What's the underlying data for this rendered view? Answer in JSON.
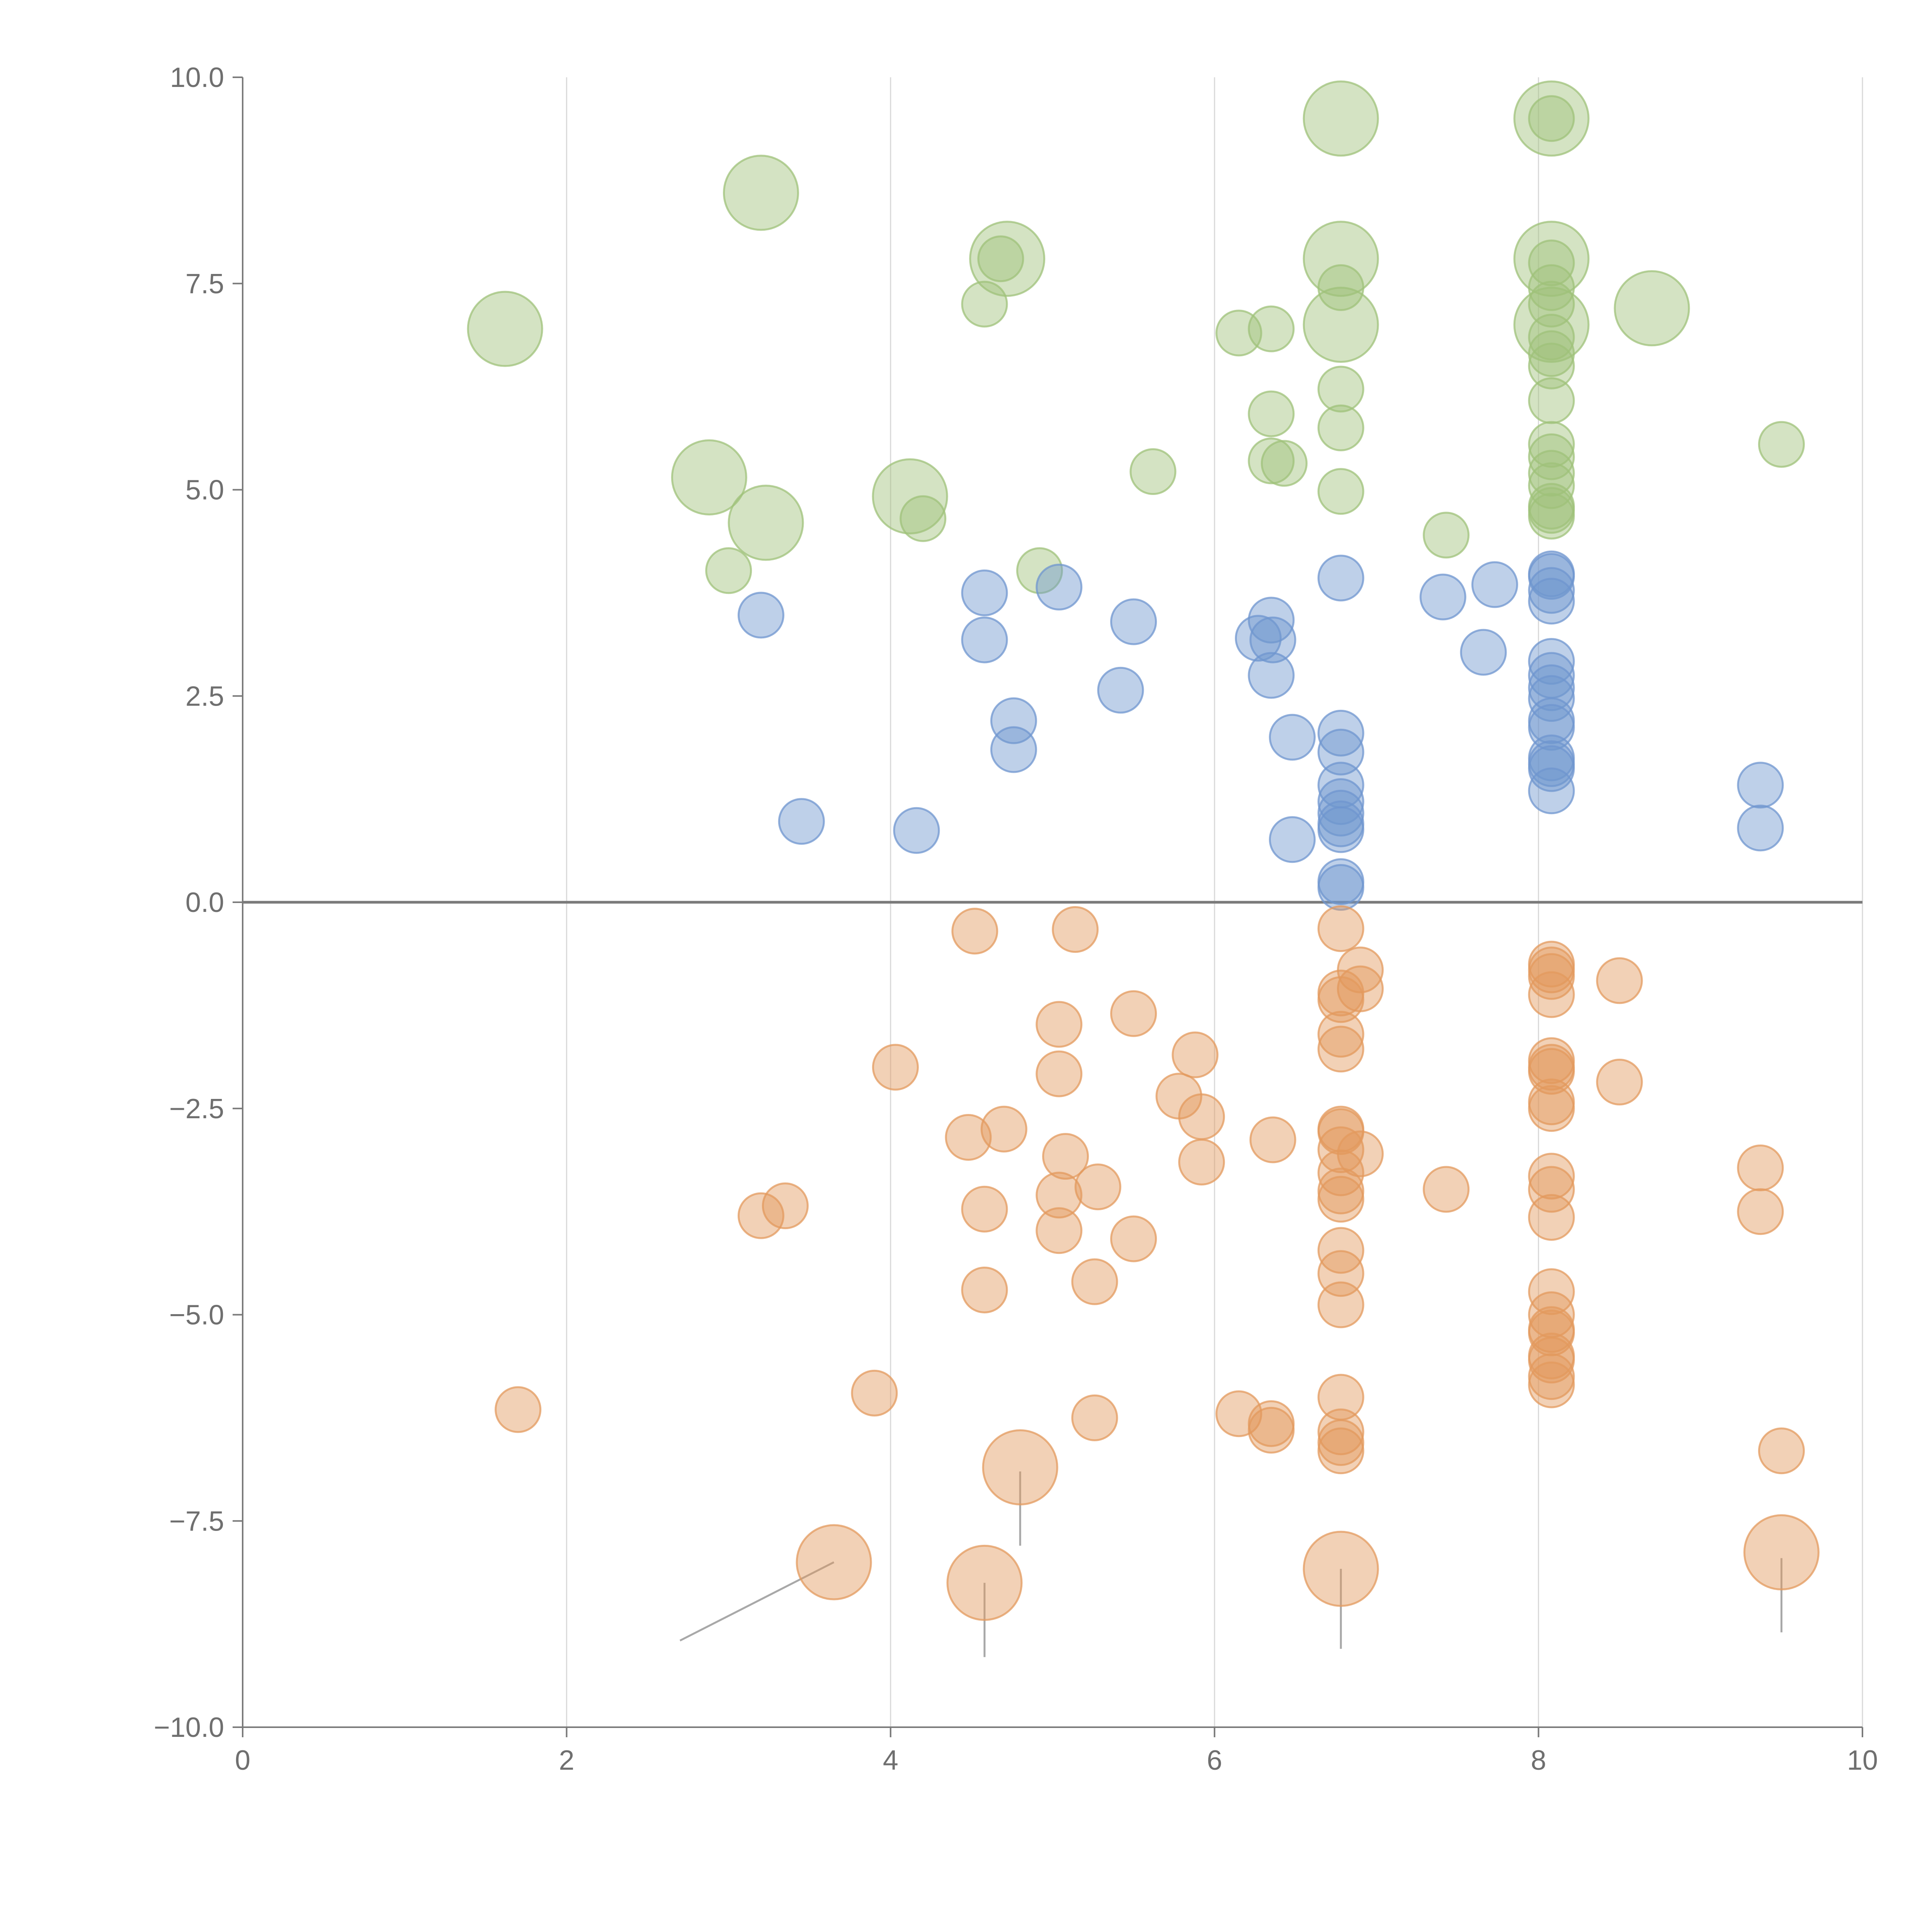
{
  "chart_data": {
    "type": "scatter",
    "title": "",
    "xlabel": "",
    "ylabel": "",
    "xlim": [
      0,
      10
    ],
    "ylim": [
      -10,
      10
    ],
    "x_ticks": [
      0,
      2,
      4,
      6,
      8,
      10
    ],
    "x_tick_labels": [
      "0",
      "2",
      "4",
      "6",
      "8",
      "10"
    ],
    "y_ticks": [
      10,
      7.5,
      5,
      2.5,
      0,
      -2.5,
      -5,
      -7.5,
      -10
    ],
    "y_tick_labels": [
      "10.0",
      "7.5",
      "5.0",
      "2.5",
      "0.0",
      "−2.5",
      "−5.0",
      "−7.5",
      "−10.0"
    ],
    "grid": "vertical",
    "reference_line_y": 0,
    "colors": {
      "green": "#9fc27a",
      "blue": "#6f96cf",
      "orange": "#e39a5e"
    },
    "series": [
      {
        "color": "#9fc27a",
        "points": [
          [
            6.78,
            9.5,
            "L"
          ],
          [
            8.08,
            9.5,
            "L"
          ],
          [
            8.08,
            9.5,
            "S"
          ],
          [
            3.2,
            8.6,
            "L"
          ],
          [
            4.72,
            7.8,
            "L"
          ],
          [
            4.68,
            7.8,
            "S"
          ],
          [
            6.78,
            7.8,
            "L"
          ],
          [
            8.08,
            7.8,
            "L"
          ],
          [
            8.08,
            7.75,
            "S"
          ],
          [
            6.78,
            7.45,
            "S"
          ],
          [
            8.08,
            7.45,
            "S"
          ],
          [
            4.58,
            7.25,
            "S"
          ],
          [
            8.08,
            7.25,
            "S"
          ],
          [
            8.7,
            7.2,
            "L"
          ],
          [
            1.62,
            6.95,
            "L"
          ],
          [
            6.78,
            7.0,
            "L"
          ],
          [
            8.08,
            7.0,
            "L"
          ],
          [
            6.35,
            6.95,
            "S"
          ],
          [
            6.15,
            6.9,
            "S"
          ],
          [
            8.08,
            6.85,
            "S"
          ],
          [
            8.08,
            6.65,
            "S"
          ],
          [
            8.08,
            6.5,
            "S"
          ],
          [
            6.78,
            6.22,
            "S"
          ],
          [
            8.08,
            6.08,
            "S"
          ],
          [
            6.35,
            5.92,
            "S"
          ],
          [
            6.78,
            5.75,
            "S"
          ],
          [
            8.08,
            5.55,
            "S"
          ],
          [
            8.08,
            5.4,
            "S"
          ],
          [
            9.5,
            5.55,
            "S"
          ],
          [
            6.35,
            5.35,
            "S"
          ],
          [
            6.43,
            5.32,
            "S"
          ],
          [
            5.62,
            5.22,
            "S"
          ],
          [
            8.08,
            5.2,
            "S"
          ],
          [
            8.08,
            5.05,
            "S"
          ],
          [
            2.88,
            5.15,
            "L"
          ],
          [
            6.78,
            4.98,
            "S"
          ],
          [
            4.12,
            4.92,
            "L"
          ],
          [
            8.08,
            4.8,
            "S"
          ],
          [
            8.08,
            4.75,
            "S"
          ],
          [
            4.2,
            4.65,
            "S"
          ],
          [
            8.08,
            4.68,
            "S"
          ],
          [
            3.23,
            4.6,
            "L"
          ],
          [
            7.43,
            4.45,
            "S"
          ],
          [
            3.0,
            4.02,
            "S"
          ],
          [
            4.92,
            4.02,
            "S"
          ]
        ]
      },
      {
        "color": "#6f96cf",
        "points": [
          [
            6.78,
            3.93,
            "S"
          ],
          [
            8.08,
            3.98,
            "S"
          ],
          [
            8.08,
            3.95,
            "S"
          ],
          [
            7.73,
            3.85,
            "S"
          ],
          [
            5.04,
            3.82,
            "S"
          ],
          [
            8.08,
            3.78,
            "S"
          ],
          [
            4.58,
            3.75,
            "S"
          ],
          [
            7.41,
            3.7,
            "S"
          ],
          [
            8.08,
            3.65,
            "S"
          ],
          [
            3.2,
            3.48,
            "S"
          ],
          [
            6.35,
            3.42,
            "S"
          ],
          [
            5.5,
            3.4,
            "S"
          ],
          [
            6.27,
            3.2,
            "S"
          ],
          [
            6.36,
            3.18,
            "S"
          ],
          [
            4.58,
            3.18,
            "S"
          ],
          [
            7.66,
            3.03,
            "S"
          ],
          [
            8.08,
            2.92,
            "S"
          ],
          [
            6.35,
            2.75,
            "S"
          ],
          [
            8.08,
            2.75,
            "S"
          ],
          [
            8.08,
            2.6,
            "S"
          ],
          [
            5.42,
            2.57,
            "S"
          ],
          [
            8.08,
            2.47,
            "S"
          ],
          [
            4.76,
            2.2,
            "S"
          ],
          [
            8.08,
            2.2,
            "S"
          ],
          [
            8.08,
            2.12,
            "S"
          ],
          [
            6.78,
            2.05,
            "S"
          ],
          [
            6.48,
            2.0,
            "S"
          ],
          [
            4.76,
            1.85,
            "S"
          ],
          [
            6.78,
            1.82,
            "S"
          ],
          [
            8.08,
            1.75,
            "S"
          ],
          [
            8.08,
            1.68,
            "S"
          ],
          [
            8.08,
            1.62,
            "S"
          ],
          [
            6.78,
            1.42,
            "S"
          ],
          [
            9.37,
            1.42,
            "S"
          ],
          [
            8.08,
            1.35,
            "S"
          ],
          [
            6.78,
            1.22,
            "S"
          ],
          [
            6.78,
            1.08,
            "S"
          ],
          [
            3.45,
            0.98,
            "S"
          ],
          [
            6.78,
            0.95,
            "S"
          ],
          [
            6.78,
            0.88,
            "S"
          ],
          [
            9.37,
            0.9,
            "S"
          ],
          [
            4.16,
            0.87,
            "S"
          ],
          [
            6.48,
            0.76,
            "S"
          ],
          [
            6.78,
            0.25,
            "S"
          ],
          [
            6.78,
            0.18,
            "S"
          ]
        ]
      },
      {
        "color": "#e39a5e",
        "points": [
          [
            4.52,
            -0.35,
            "S"
          ],
          [
            5.14,
            -0.33,
            "S"
          ],
          [
            6.78,
            -0.32,
            "S"
          ],
          [
            8.08,
            -0.75,
            "S"
          ],
          [
            8.08,
            -0.82,
            "S"
          ],
          [
            6.9,
            -0.82,
            "S"
          ],
          [
            8.08,
            -0.9,
            "S"
          ],
          [
            8.5,
            -0.95,
            "S"
          ],
          [
            6.9,
            -1.05,
            "S"
          ],
          [
            6.78,
            -1.1,
            "S"
          ],
          [
            8.08,
            -1.12,
            "S"
          ],
          [
            6.78,
            -1.18,
            "S"
          ],
          [
            5.5,
            -1.35,
            "S"
          ],
          [
            5.04,
            -1.48,
            "S"
          ],
          [
            6.78,
            -1.6,
            "S"
          ],
          [
            6.78,
            -1.78,
            "S"
          ],
          [
            5.88,
            -1.85,
            "S"
          ],
          [
            8.08,
            -1.92,
            "S"
          ],
          [
            8.08,
            -2.0,
            "S"
          ],
          [
            4.03,
            -2.0,
            "S"
          ],
          [
            8.08,
            -2.05,
            "S"
          ],
          [
            5.04,
            -2.08,
            "S"
          ],
          [
            8.5,
            -2.18,
            "S"
          ],
          [
            5.78,
            -2.35,
            "S"
          ],
          [
            8.08,
            -2.42,
            "S"
          ],
          [
            8.08,
            -2.5,
            "S"
          ],
          [
            5.92,
            -2.6,
            "S"
          ],
          [
            6.78,
            -2.75,
            "S"
          ],
          [
            4.7,
            -2.75,
            "S"
          ],
          [
            6.78,
            -2.78,
            "S"
          ],
          [
            4.48,
            -2.85,
            "S"
          ],
          [
            6.36,
            -2.88,
            "S"
          ],
          [
            6.78,
            -3.0,
            "S"
          ],
          [
            6.9,
            -3.05,
            "S"
          ],
          [
            5.08,
            -3.08,
            "S"
          ],
          [
            5.92,
            -3.15,
            "S"
          ],
          [
            9.37,
            -3.22,
            "S"
          ],
          [
            6.78,
            -3.28,
            "S"
          ],
          [
            8.08,
            -3.32,
            "S"
          ],
          [
            5.28,
            -3.45,
            "S"
          ],
          [
            7.43,
            -3.48,
            "S"
          ],
          [
            8.08,
            -3.48,
            "S"
          ],
          [
            6.78,
            -3.5,
            "S"
          ],
          [
            5.04,
            -3.55,
            "S"
          ],
          [
            6.78,
            -3.6,
            "S"
          ],
          [
            3.35,
            -3.68,
            "S"
          ],
          [
            4.58,
            -3.72,
            "S"
          ],
          [
            9.37,
            -3.75,
            "S"
          ],
          [
            3.2,
            -3.8,
            "S"
          ],
          [
            8.08,
            -3.82,
            "S"
          ],
          [
            5.04,
            -3.98,
            "S"
          ],
          [
            5.5,
            -4.08,
            "S"
          ],
          [
            6.78,
            -4.22,
            "S"
          ],
          [
            6.78,
            -4.5,
            "S"
          ],
          [
            5.26,
            -4.6,
            "S"
          ],
          [
            4.58,
            -4.7,
            "S"
          ],
          [
            8.08,
            -4.72,
            "S"
          ],
          [
            6.78,
            -4.88,
            "S"
          ],
          [
            8.08,
            -5.0,
            "S"
          ],
          [
            8.08,
            -5.18,
            "S"
          ],
          [
            8.08,
            -5.22,
            "S"
          ],
          [
            8.08,
            -5.5,
            "S"
          ],
          [
            8.08,
            -5.55,
            "S"
          ],
          [
            8.08,
            -5.75,
            "S"
          ],
          [
            8.08,
            -5.85,
            "S"
          ],
          [
            3.9,
            -5.95,
            "S"
          ],
          [
            6.78,
            -6.0,
            "S"
          ],
          [
            1.7,
            -6.15,
            "S"
          ],
          [
            6.15,
            -6.2,
            "S"
          ],
          [
            5.26,
            -6.25,
            "S"
          ],
          [
            6.35,
            -6.32,
            "S"
          ],
          [
            6.35,
            -6.4,
            "S"
          ],
          [
            6.78,
            -6.42,
            "S"
          ],
          [
            6.78,
            -6.55,
            "S"
          ],
          [
            6.78,
            -6.65,
            "S"
          ],
          [
            9.5,
            -6.65,
            "S"
          ],
          [
            4.8,
            -6.85,
            "L"
          ],
          [
            3.65,
            -8.0,
            "L"
          ],
          [
            4.58,
            -8.25,
            "L"
          ],
          [
            6.78,
            -8.08,
            "L"
          ],
          [
            9.5,
            -7.88,
            "L"
          ]
        ]
      }
    ],
    "leader_lines": [
      [
        4.8,
        -6.9,
        4.8,
        -7.8
      ],
      [
        3.65,
        -8.0,
        2.7,
        -8.95
      ],
      [
        4.58,
        -8.25,
        4.58,
        -9.15
      ],
      [
        6.78,
        -8.08,
        6.78,
        -9.05
      ],
      [
        9.5,
        -7.95,
        9.5,
        -8.85
      ]
    ]
  }
}
